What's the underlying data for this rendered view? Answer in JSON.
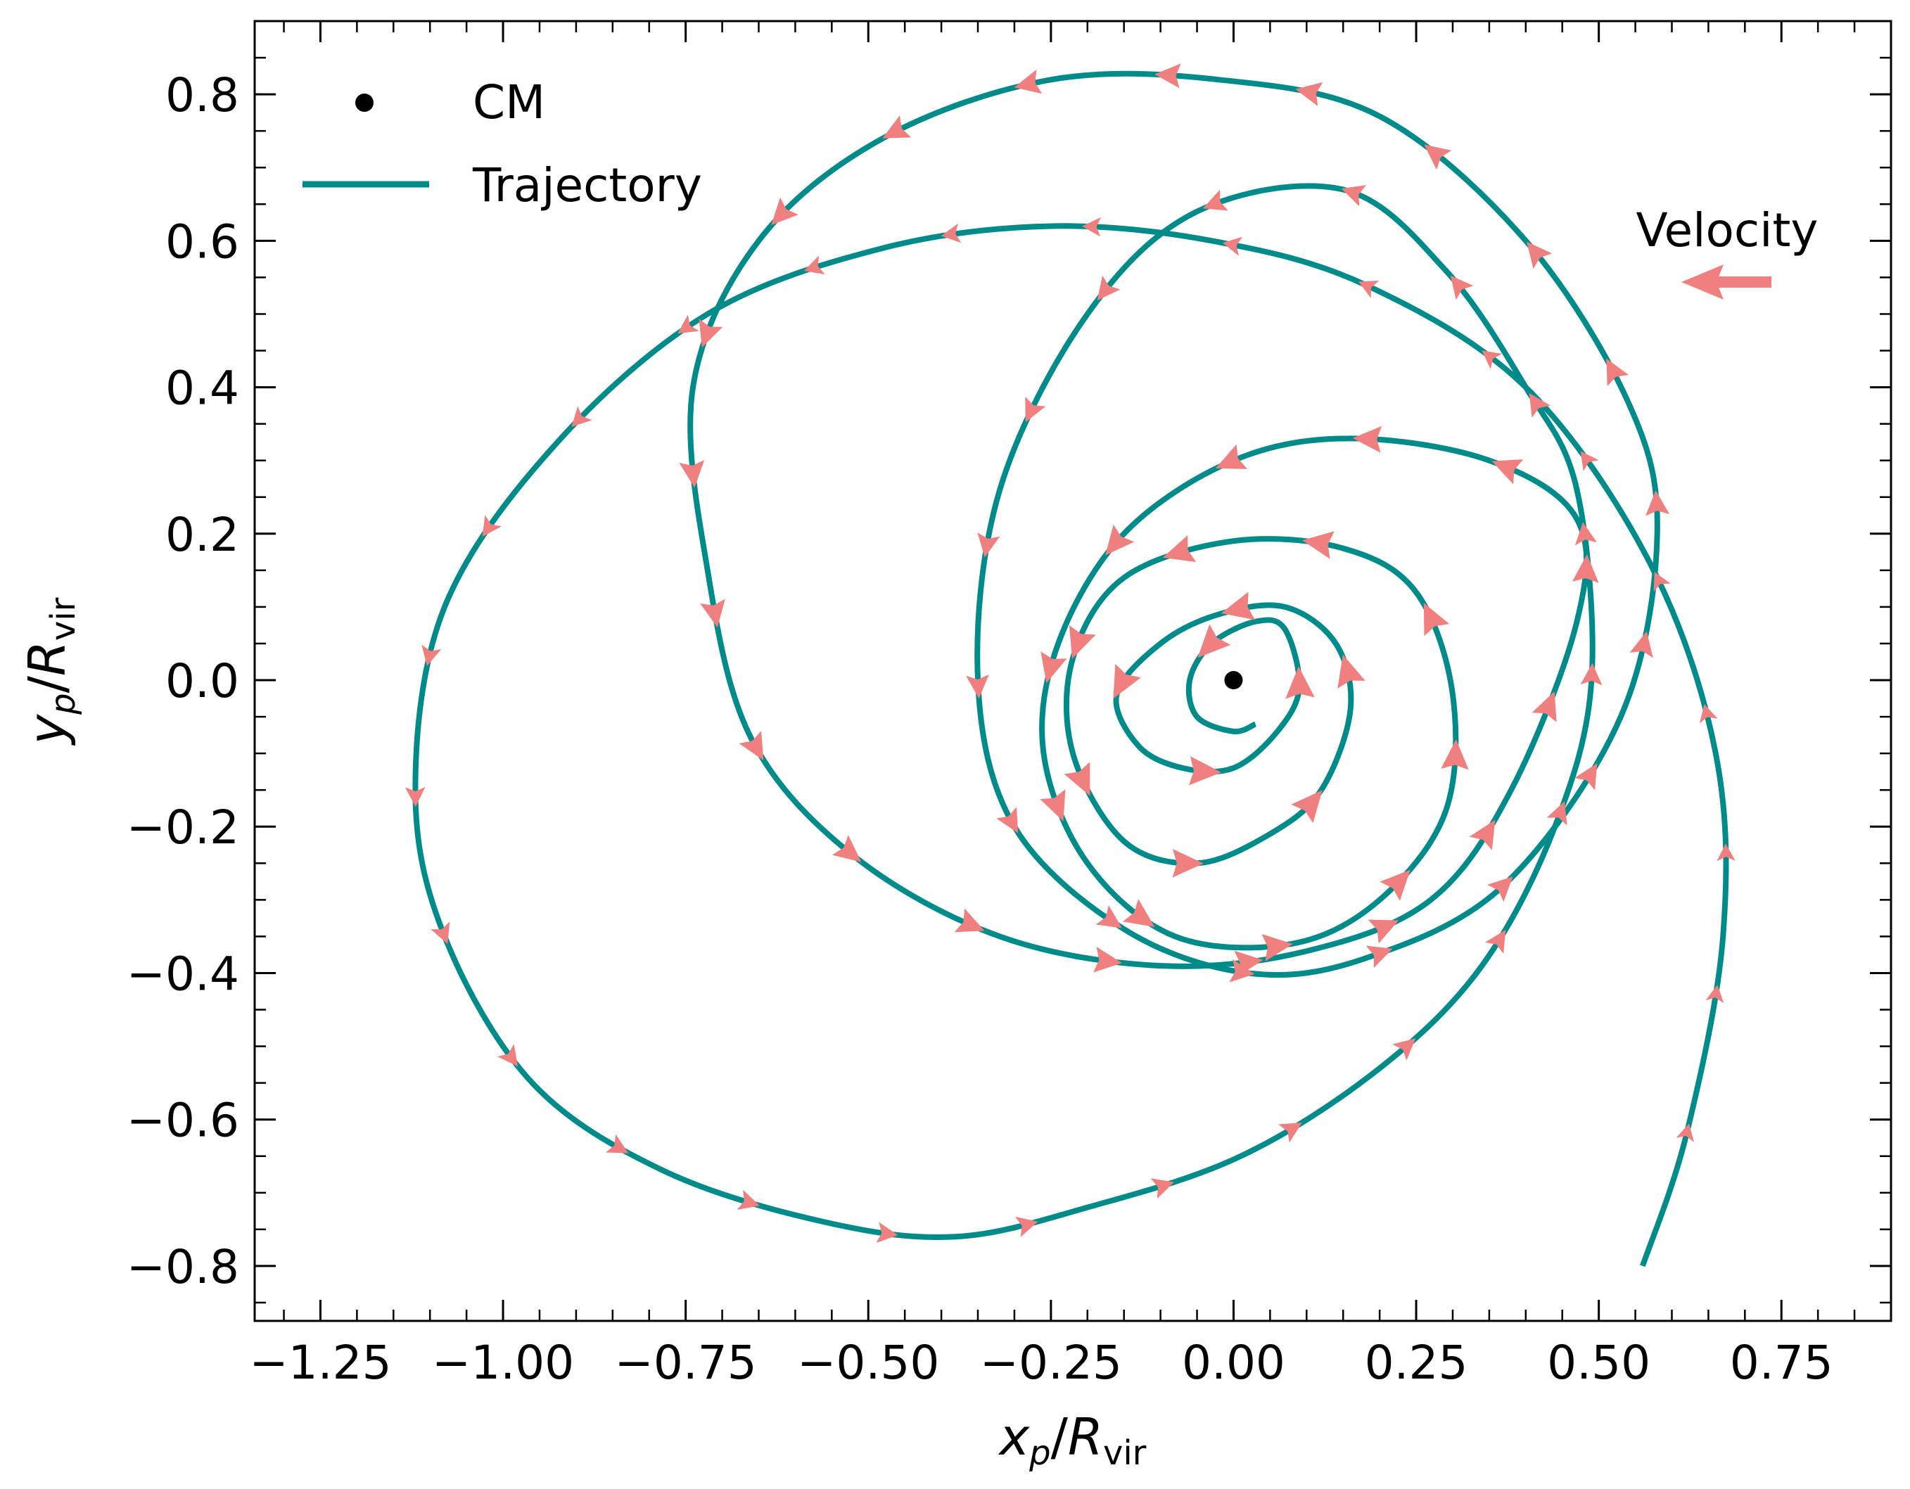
{
  "chart_data": {
    "type": "line",
    "title": "",
    "xlabel": "x_p/R_vir",
    "ylabel": "y_p/R_vir",
    "xlim": [
      -1.34,
      0.9
    ],
    "ylim": [
      -0.875,
      0.9
    ],
    "x_ticks": [
      -1.25,
      -1.0,
      -0.75,
      -0.5,
      -0.25,
      0.0,
      0.25,
      0.5,
      0.75
    ],
    "x_tick_labels": [
      "−1.25",
      "−1.00",
      "−0.75",
      "−0.50",
      "−0.25",
      "0.00",
      "0.25",
      "0.50",
      "0.75"
    ],
    "y_ticks": [
      0.8,
      0.6,
      0.4,
      0.2,
      0.0,
      -0.2,
      -0.4,
      -0.6,
      -0.8
    ],
    "y_tick_labels": [
      "0.8",
      "0.6",
      "0.4",
      "0.2",
      "0.0",
      "−0.2",
      "−0.4",
      "−0.6",
      "−0.8"
    ],
    "minor_tick_step": 0.05,
    "grid": false,
    "legend": {
      "position": "top-left",
      "entries": [
        {
          "label": "CM",
          "marker": "dot",
          "color": "#000000"
        },
        {
          "label": "Trajectory",
          "marker": "line",
          "color": "#008b8b"
        }
      ]
    },
    "annotation": {
      "text": "Velocity",
      "arrow_color": "#f08080"
    },
    "series": [
      {
        "name": "Trajectory",
        "color": "#008b8b",
        "control_points": [
          [
            0.56,
            -0.8
          ],
          [
            0.62,
            -0.62
          ],
          [
            0.67,
            -0.35
          ],
          [
            0.66,
            -0.1
          ],
          [
            0.57,
            0.16
          ],
          [
            0.4,
            0.4
          ],
          [
            0.18,
            0.54
          ],
          [
            -0.03,
            0.6
          ],
          [
            -0.25,
            0.62
          ],
          [
            -0.48,
            0.59
          ],
          [
            -0.72,
            0.5
          ],
          [
            -0.93,
            0.32
          ],
          [
            -1.08,
            0.1
          ],
          [
            -1.12,
            -0.15
          ],
          [
            -1.08,
            -0.35
          ],
          [
            -0.96,
            -0.55
          ],
          [
            -0.78,
            -0.67
          ],
          [
            -0.56,
            -0.74
          ],
          [
            -0.38,
            -0.76
          ],
          [
            -0.2,
            -0.72
          ],
          [
            0.01,
            -0.65
          ],
          [
            0.2,
            -0.53
          ],
          [
            0.34,
            -0.39
          ],
          [
            0.44,
            -0.2
          ],
          [
            0.49,
            0.0
          ],
          [
            0.47,
            0.26
          ],
          [
            0.4,
            0.4
          ],
          [
            0.29,
            0.56
          ],
          [
            0.15,
            0.67
          ],
          [
            -0.05,
            0.64
          ],
          [
            -0.2,
            0.5
          ],
          [
            -0.32,
            0.26
          ],
          [
            -0.35,
            0.0
          ],
          [
            -0.3,
            -0.2
          ],
          [
            -0.15,
            -0.34
          ],
          [
            0.02,
            -0.4
          ],
          [
            0.18,
            -0.38
          ],
          [
            0.37,
            -0.28
          ],
          [
            0.53,
            -0.05
          ],
          [
            0.58,
            0.2
          ],
          [
            0.54,
            0.38
          ],
          [
            0.4,
            0.6
          ],
          [
            0.2,
            0.77
          ],
          [
            -0.02,
            0.82
          ],
          [
            -0.25,
            0.82
          ],
          [
            -0.48,
            0.74
          ],
          [
            -0.65,
            0.6
          ],
          [
            -0.74,
            0.4
          ],
          [
            -0.72,
            0.15
          ],
          [
            -0.66,
            -0.08
          ],
          [
            -0.52,
            -0.24
          ],
          [
            -0.32,
            -0.35
          ],
          [
            -0.1,
            -0.39
          ],
          [
            0.1,
            -0.37
          ],
          [
            0.27,
            -0.3
          ],
          [
            0.38,
            -0.15
          ],
          [
            0.47,
            0.08
          ],
          [
            0.47,
            0.22
          ],
          [
            0.35,
            0.3
          ],
          [
            0.16,
            0.33
          ],
          [
            0.0,
            0.3
          ],
          [
            -0.15,
            0.2
          ],
          [
            -0.24,
            0.05
          ],
          [
            -0.26,
            -0.1
          ],
          [
            -0.2,
            -0.25
          ],
          [
            -0.08,
            -0.35
          ],
          [
            0.08,
            -0.36
          ],
          [
            0.2,
            -0.3
          ],
          [
            0.29,
            -0.18
          ],
          [
            0.3,
            -0.02
          ],
          [
            0.25,
            0.12
          ],
          [
            0.15,
            0.18
          ],
          [
            0.0,
            0.19
          ],
          [
            -0.15,
            0.14
          ],
          [
            -0.22,
            0.03
          ],
          [
            -0.22,
            -0.1
          ],
          [
            -0.15,
            -0.22
          ],
          [
            -0.05,
            -0.25
          ],
          [
            0.05,
            -0.21
          ],
          [
            0.12,
            -0.15
          ],
          [
            0.16,
            -0.04
          ],
          [
            0.14,
            0.05
          ],
          [
            0.07,
            0.1
          ],
          [
            -0.02,
            0.09
          ],
          [
            -0.1,
            0.05
          ],
          [
            -0.16,
            -0.02
          ],
          [
            -0.13,
            -0.09
          ],
          [
            -0.07,
            -0.12
          ],
          [
            0.0,
            -0.12
          ],
          [
            0.06,
            -0.07
          ],
          [
            0.09,
            -0.01
          ],
          [
            0.07,
            0.07
          ],
          [
            0.03,
            0.08
          ],
          [
            -0.03,
            0.05
          ],
          [
            -0.06,
            0.0
          ],
          [
            -0.05,
            -0.05
          ],
          [
            0.0,
            -0.07
          ],
          [
            0.03,
            -0.06
          ]
        ]
      },
      {
        "name": "CM",
        "type": "scatter",
        "color": "#000000",
        "points": [
          [
            0.0,
            0.0
          ]
        ]
      }
    ]
  }
}
